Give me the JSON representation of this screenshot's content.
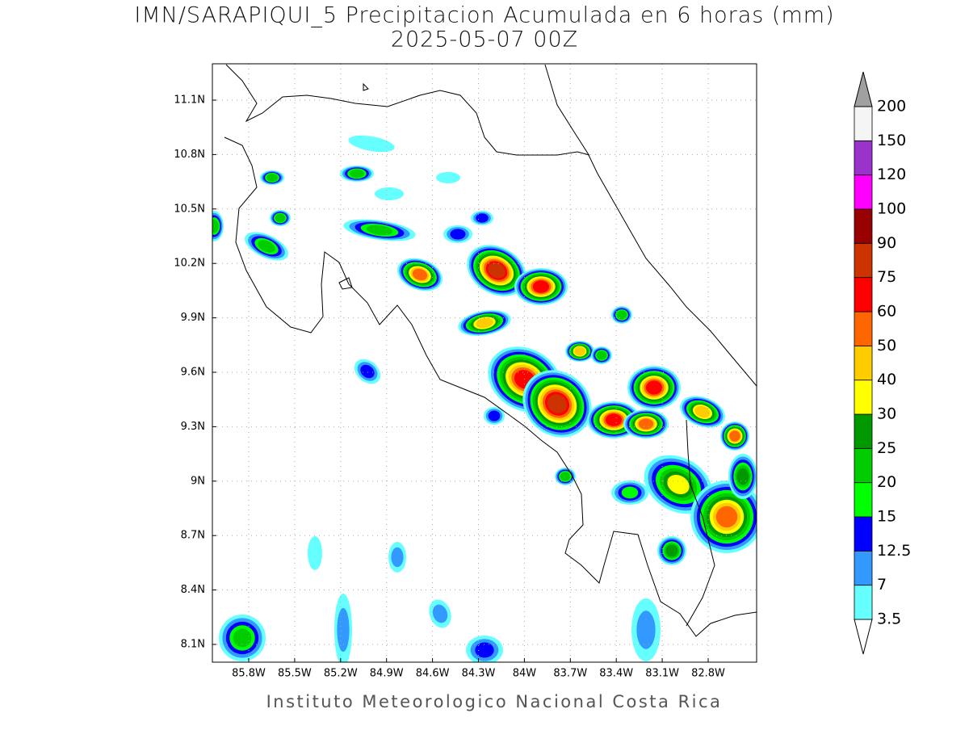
{
  "title": "IMN/SARAPIQUI_5 Precipitacion Acumulada en 6 horas (mm)",
  "subtitle": "2025-05-07 00Z",
  "map": {
    "lat_labels": [
      "8.1N",
      "8.4N",
      "8.7N",
      "9N",
      "9.3N",
      "9.6N",
      "9.9N",
      "10.2N",
      "10.5N",
      "10.8N",
      "11.1N"
    ],
    "lon_labels": [
      "85.8W",
      "85.5W",
      "85.2W",
      "84.9W",
      "84.6W",
      "84.3W",
      "84W",
      "83.7W",
      "83.4W",
      "83.1W",
      "82.8W"
    ]
  },
  "colorbar": {
    "levels": [
      3.5,
      7,
      12.5,
      15,
      20,
      25,
      30,
      40,
      50,
      60,
      75,
      90,
      100,
      120,
      150,
      200
    ],
    "colors": [
      "#ffffff",
      "#66ffff",
      "#3399ff",
      "#0000ff",
      "#00ff00",
      "#00cc00",
      "#009900",
      "#ffff00",
      "#ffcc00",
      "#ff6600",
      "#ff0000",
      "#cc3300",
      "#990000",
      "#ff00ff",
      "#9933cc",
      "#f5f5f5",
      "#a0a0a0"
    ]
  },
  "footer": "Instituto Meteorologico Nacional Costa Rica"
}
